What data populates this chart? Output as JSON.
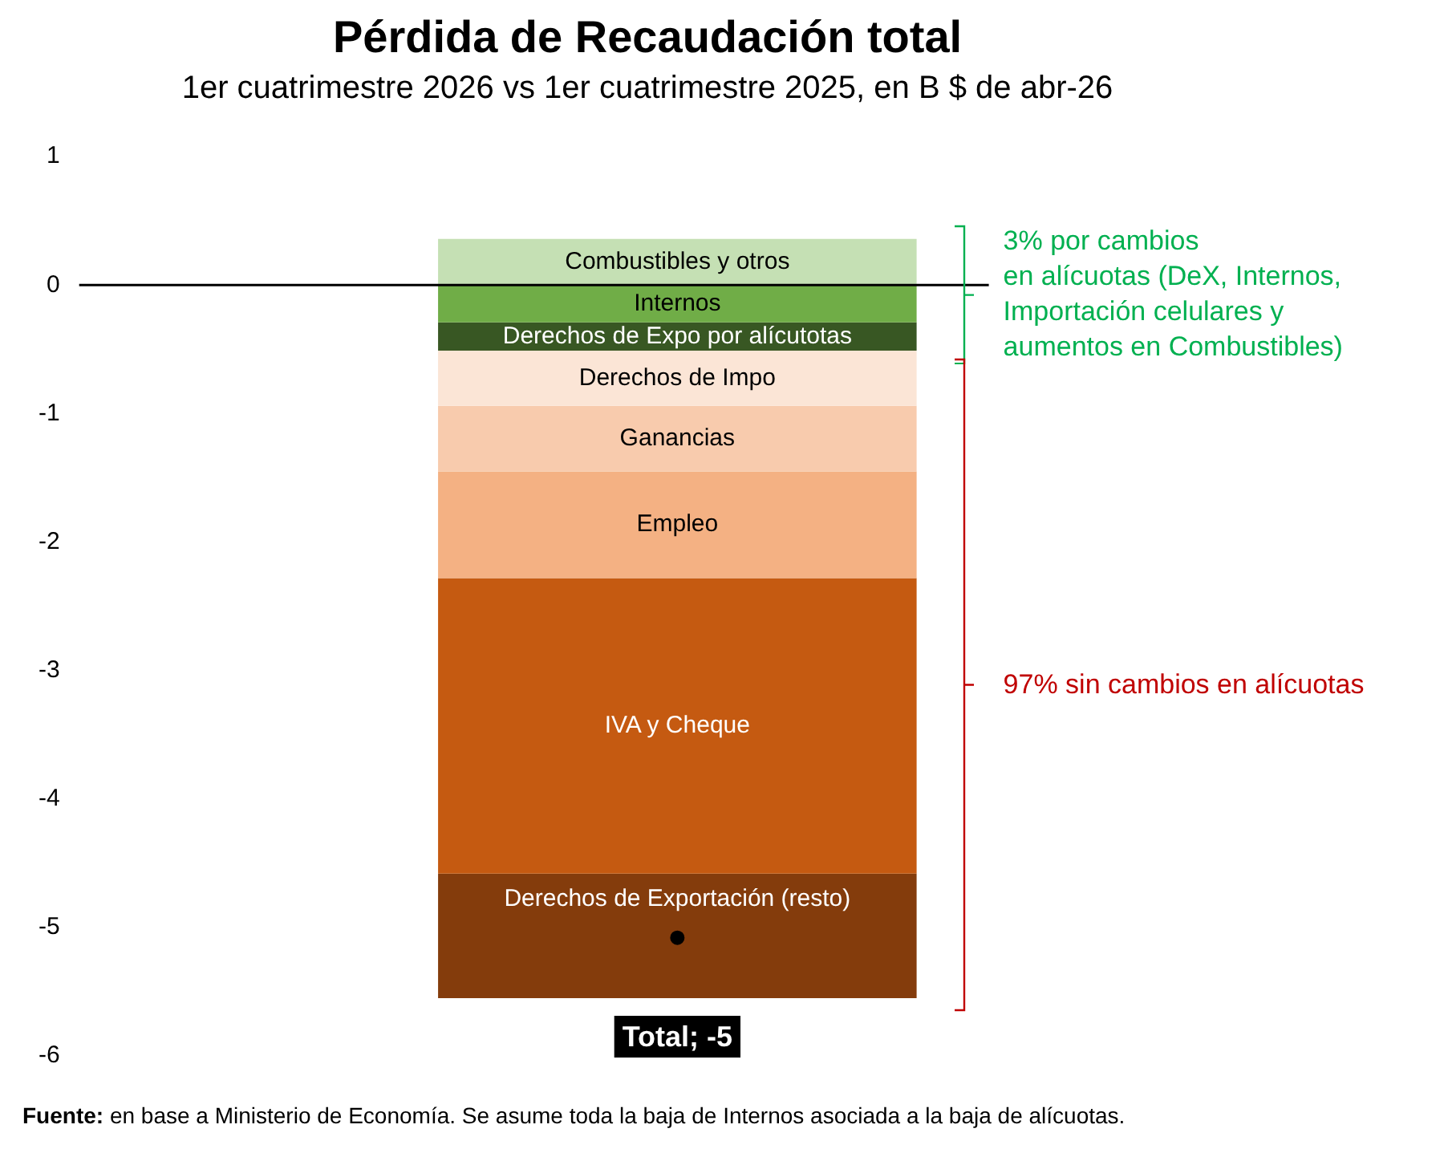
{
  "chart_data": {
    "type": "bar",
    "title": "Pérdida de Recaudación total",
    "subtitle": "1er cuatrimestre 2026 vs 1er cuatrimestre 2025, en B $ de abr-26",
    "categories": [
      "Total; -5"
    ],
    "stacked": true,
    "series": [
      {
        "name": "Combustibles y otros",
        "color": "#c5e0b4",
        "values": [
          0.36
        ]
      },
      {
        "name": "Internos",
        "color": "#70ad47",
        "values": [
          -0.29
        ]
      },
      {
        "name": "Derechos de Expo por alícutotas",
        "color": "#385723",
        "values": [
          -0.22
        ]
      },
      {
        "name": "Derechos de Impo",
        "color": "#fbe5d6",
        "values": [
          -0.43
        ]
      },
      {
        "name": "Ganancias",
        "color": "#f8cbad",
        "values": [
          -0.51
        ]
      },
      {
        "name": "Empleo",
        "color": "#f4b183",
        "values": [
          -0.83
        ]
      },
      {
        "name": "IVA y Cheque",
        "color": "#c55a11",
        "values": [
          -2.3
        ]
      },
      {
        "name": "Derechos de Exportación (resto)",
        "color": "#843c0c",
        "values": [
          -0.97
        ]
      },
      {
        "type": "scatter",
        "color": "#000000",
        "x": [
          "Total; -5"
        ],
        "values": [
          -5.08
        ]
      }
    ],
    "ylim": [
      -6,
      1
    ],
    "yticks": [
      1,
      0,
      -1,
      -2,
      -3,
      -4,
      -5,
      -6
    ],
    "grid": false,
    "legend": false,
    "ref_lines": [
      {
        "axis": "y",
        "value": 0,
        "color": "#000000"
      }
    ],
    "annotations": [
      "3% por cambios\nen alícuotas (DeX, Internos,\nImportación celulares y\naumentos en Combustibles)",
      "97% sin cambios en alícuotas",
      "Fuente: en base a Ministerio de Economía. Se asume toda la baja de Internos asociada a la baja de alícuotas."
    ]
  }
}
